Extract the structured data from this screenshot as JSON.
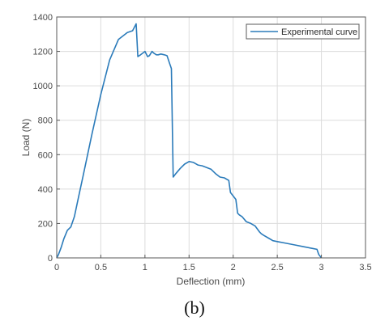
{
  "caption": "(b)",
  "chart_data": {
    "type": "line",
    "xlabel": "Deflection (mm)",
    "ylabel": "Load (N)",
    "xlim": [
      0,
      3.5
    ],
    "ylim": [
      0,
      1400
    ],
    "xticks": [
      0,
      0.5,
      1,
      1.5,
      2,
      2.5,
      3,
      3.5
    ],
    "xtick_labels": [
      "0",
      "0.5",
      "1",
      "1.5",
      "2",
      "2.5",
      "3",
      "3.5"
    ],
    "yticks": [
      0,
      200,
      400,
      600,
      800,
      1000,
      1200,
      1400
    ],
    "ytick_labels": [
      "0",
      "200",
      "400",
      "600",
      "800",
      "1000",
      "1200",
      "1400"
    ],
    "grid": true,
    "legend_position": "top-right",
    "series": [
      {
        "name": "Experimental curve",
        "color": "#2b7bba",
        "x": [
          0.0,
          0.02,
          0.05,
          0.08,
          0.12,
          0.16,
          0.2,
          0.25,
          0.3,
          0.4,
          0.5,
          0.6,
          0.7,
          0.8,
          0.86,
          0.9,
          0.92,
          0.95,
          1.0,
          1.03,
          1.05,
          1.08,
          1.1,
          1.13,
          1.15,
          1.18,
          1.22,
          1.25,
          1.28,
          1.3,
          1.32,
          1.35,
          1.4,
          1.45,
          1.5,
          1.55,
          1.6,
          1.65,
          1.7,
          1.75,
          1.8,
          1.85,
          1.9,
          1.95,
          1.97,
          2.0,
          2.03,
          2.05,
          2.07,
          2.1,
          2.15,
          2.2,
          2.25,
          2.3,
          2.32,
          2.35,
          2.4,
          2.45,
          2.5,
          2.6,
          2.7,
          2.8,
          2.9,
          2.95,
          2.97,
          3.0
        ],
        "y": [
          0,
          20,
          60,
          110,
          160,
          180,
          240,
          360,
          480,
          720,
          950,
          1150,
          1270,
          1310,
          1320,
          1360,
          1170,
          1180,
          1200,
          1170,
          1175,
          1200,
          1190,
          1180,
          1180,
          1185,
          1180,
          1175,
          1130,
          1100,
          470,
          490,
          520,
          545,
          560,
          555,
          540,
          535,
          525,
          515,
          490,
          470,
          465,
          450,
          380,
          360,
          340,
          260,
          250,
          240,
          210,
          200,
          185,
          150,
          140,
          130,
          115,
          100,
          95,
          85,
          75,
          65,
          55,
          50,
          20,
          0
        ]
      }
    ]
  }
}
